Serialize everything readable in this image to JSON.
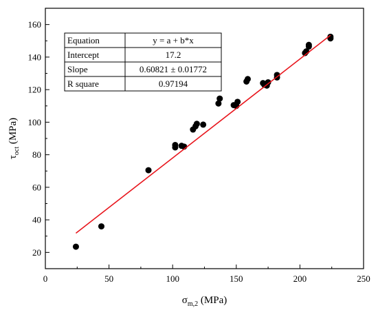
{
  "chart_data": {
    "type": "scatter",
    "title": "",
    "xlabel": "σ",
    "xlabel_sub": "m,2",
    "xlabel_unit": " (MPa)",
    "ylabel": "τ",
    "ylabel_sub": "oct",
    "ylabel_unit": " (MPa)",
    "xlim": [
      0,
      250
    ],
    "ylim": [
      10,
      170
    ],
    "x_ticks": [
      0,
      50,
      100,
      150,
      200,
      250
    ],
    "y_ticks": [
      20,
      40,
      60,
      80,
      100,
      120,
      140,
      160
    ],
    "grid": false,
    "series": [
      {
        "kind": "points",
        "color": "#000000",
        "points": [
          [
            24,
            23.5
          ],
          [
            44,
            36
          ],
          [
            81,
            70.5
          ],
          [
            102,
            86
          ],
          [
            102,
            84.5
          ],
          [
            107,
            85.5
          ],
          [
            109,
            85
          ],
          [
            116,
            95.5
          ],
          [
            118,
            97.5
          ],
          [
            119,
            99
          ],
          [
            124,
            98.5
          ],
          [
            136,
            111.5
          ],
          [
            137,
            114.5
          ],
          [
            148,
            110.5
          ],
          [
            150,
            110
          ],
          [
            151,
            112.5
          ],
          [
            158,
            125
          ],
          [
            159,
            126.5
          ],
          [
            171,
            124
          ],
          [
            172,
            123
          ],
          [
            174,
            122.5
          ],
          [
            175,
            124.5
          ],
          [
            182,
            127.5
          ],
          [
            182,
            129
          ],
          [
            204,
            142.5
          ],
          [
            205,
            143.5
          ],
          [
            207,
            146.5
          ],
          [
            207,
            147.5
          ],
          [
            224,
            151.5
          ],
          [
            224,
            152.5
          ]
        ]
      },
      {
        "kind": "fit-line",
        "color": "#e8141b",
        "x_range": [
          24,
          224
        ],
        "intercept": 17.2,
        "slope": 0.60821
      }
    ],
    "fit_table": {
      "rows": [
        {
          "label": "Equation",
          "value": "y = a + b*x"
        },
        {
          "label": "Intercept",
          "value": "17.2"
        },
        {
          "label": "Slope",
          "value": "0.60821 ± 0.01772"
        },
        {
          "label": "R square",
          "value": "0.97194"
        }
      ]
    }
  }
}
